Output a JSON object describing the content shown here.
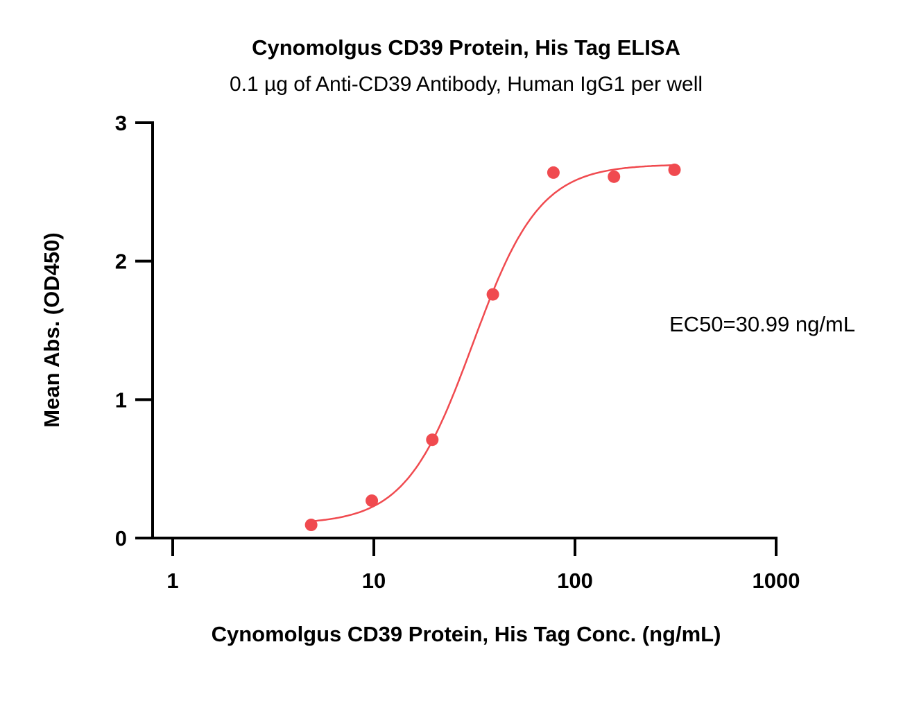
{
  "chart_data": {
    "type": "scatter",
    "title": "Cynomolgus CD39 Protein, His Tag ELISA",
    "subtitle": "0.1 µg of Anti-CD39 Antibody, Human IgG1 per well",
    "xlabel": "Cynomolgus CD39 Protein, His Tag Conc. (ng/mL)",
    "ylabel": "Mean Abs. (OD450)",
    "xscale": "log",
    "xlim": [
      1,
      1000
    ],
    "ylim": [
      0,
      3
    ],
    "xticks": [
      "1",
      "10",
      "100",
      "1000"
    ],
    "yticks": [
      "0",
      "1",
      "2",
      "3"
    ],
    "grid": false,
    "color": "#f04a4f",
    "series": [
      {
        "name": "Mean Abs.",
        "x": [
          4.88,
          9.77,
          19.53,
          39.06,
          78.13,
          156.25,
          312.5
        ],
        "y": [
          0.095,
          0.27,
          0.71,
          1.76,
          2.64,
          2.61,
          2.66
        ]
      }
    ],
    "fit": {
      "model": "4PL",
      "bottom": 0.1,
      "top": 2.7,
      "ec50": 30.99,
      "hill": 2.6
    },
    "annotation": "EC50=30.99 ng/mL"
  }
}
